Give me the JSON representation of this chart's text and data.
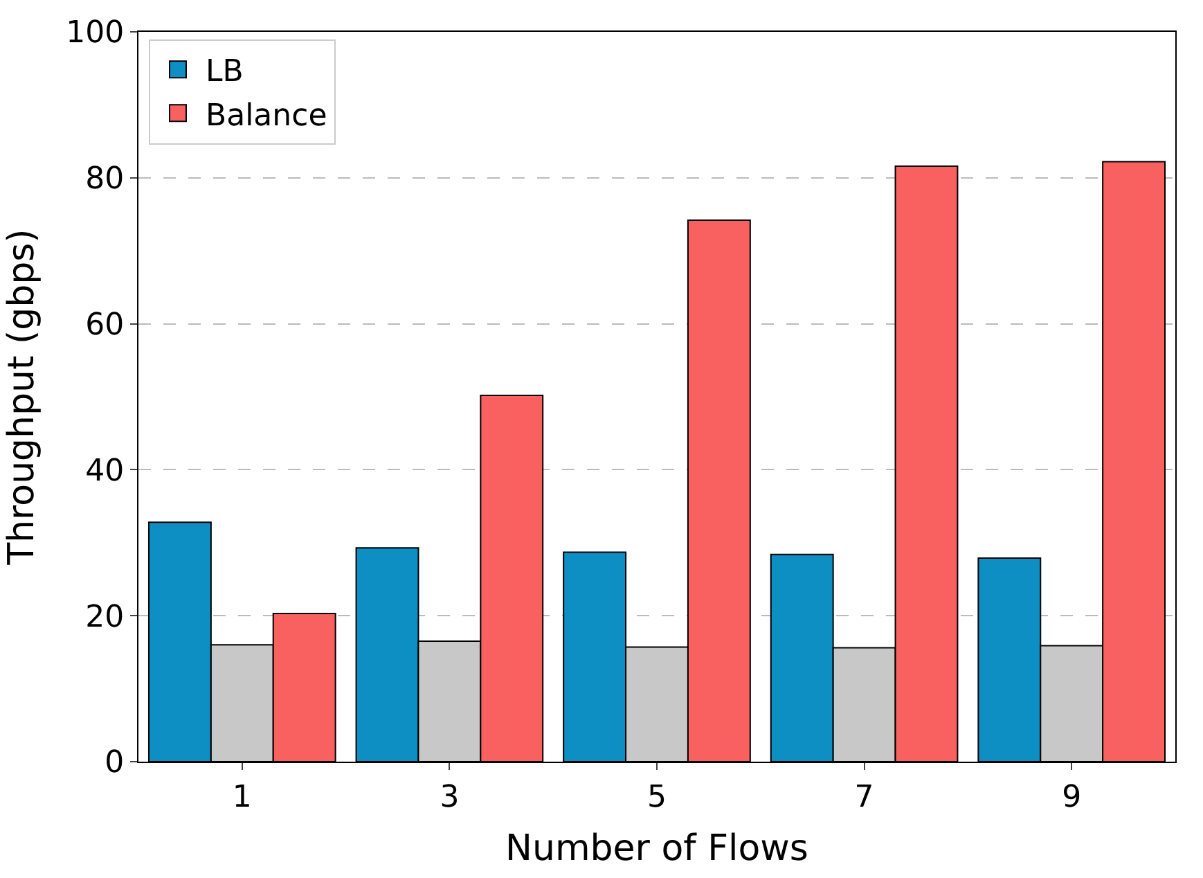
{
  "chart_data": {
    "type": "bar",
    "xlabel": "Number of Flows",
    "ylabel": "Throughput (gbps)",
    "categories": [
      "1",
      "3",
      "5",
      "7",
      "9"
    ],
    "series": [
      {
        "name": "LB",
        "color": "#0e8fc4",
        "values": [
          32.8,
          29.3,
          28.7,
          28.4,
          27.9
        ]
      },
      {
        "color": "#c8c8c8",
        "values": [
          16.0,
          16.5,
          15.7,
          15.6,
          15.9
        ]
      },
      {
        "name": "Balance",
        "color": "#f96060",
        "values": [
          20.3,
          50.2,
          74.2,
          81.6,
          82.2
        ]
      }
    ],
    "ylim": [
      0,
      100
    ],
    "yticks": [
      0,
      20,
      40,
      60,
      80,
      100
    ],
    "grid": "y",
    "legend": "top left"
  }
}
